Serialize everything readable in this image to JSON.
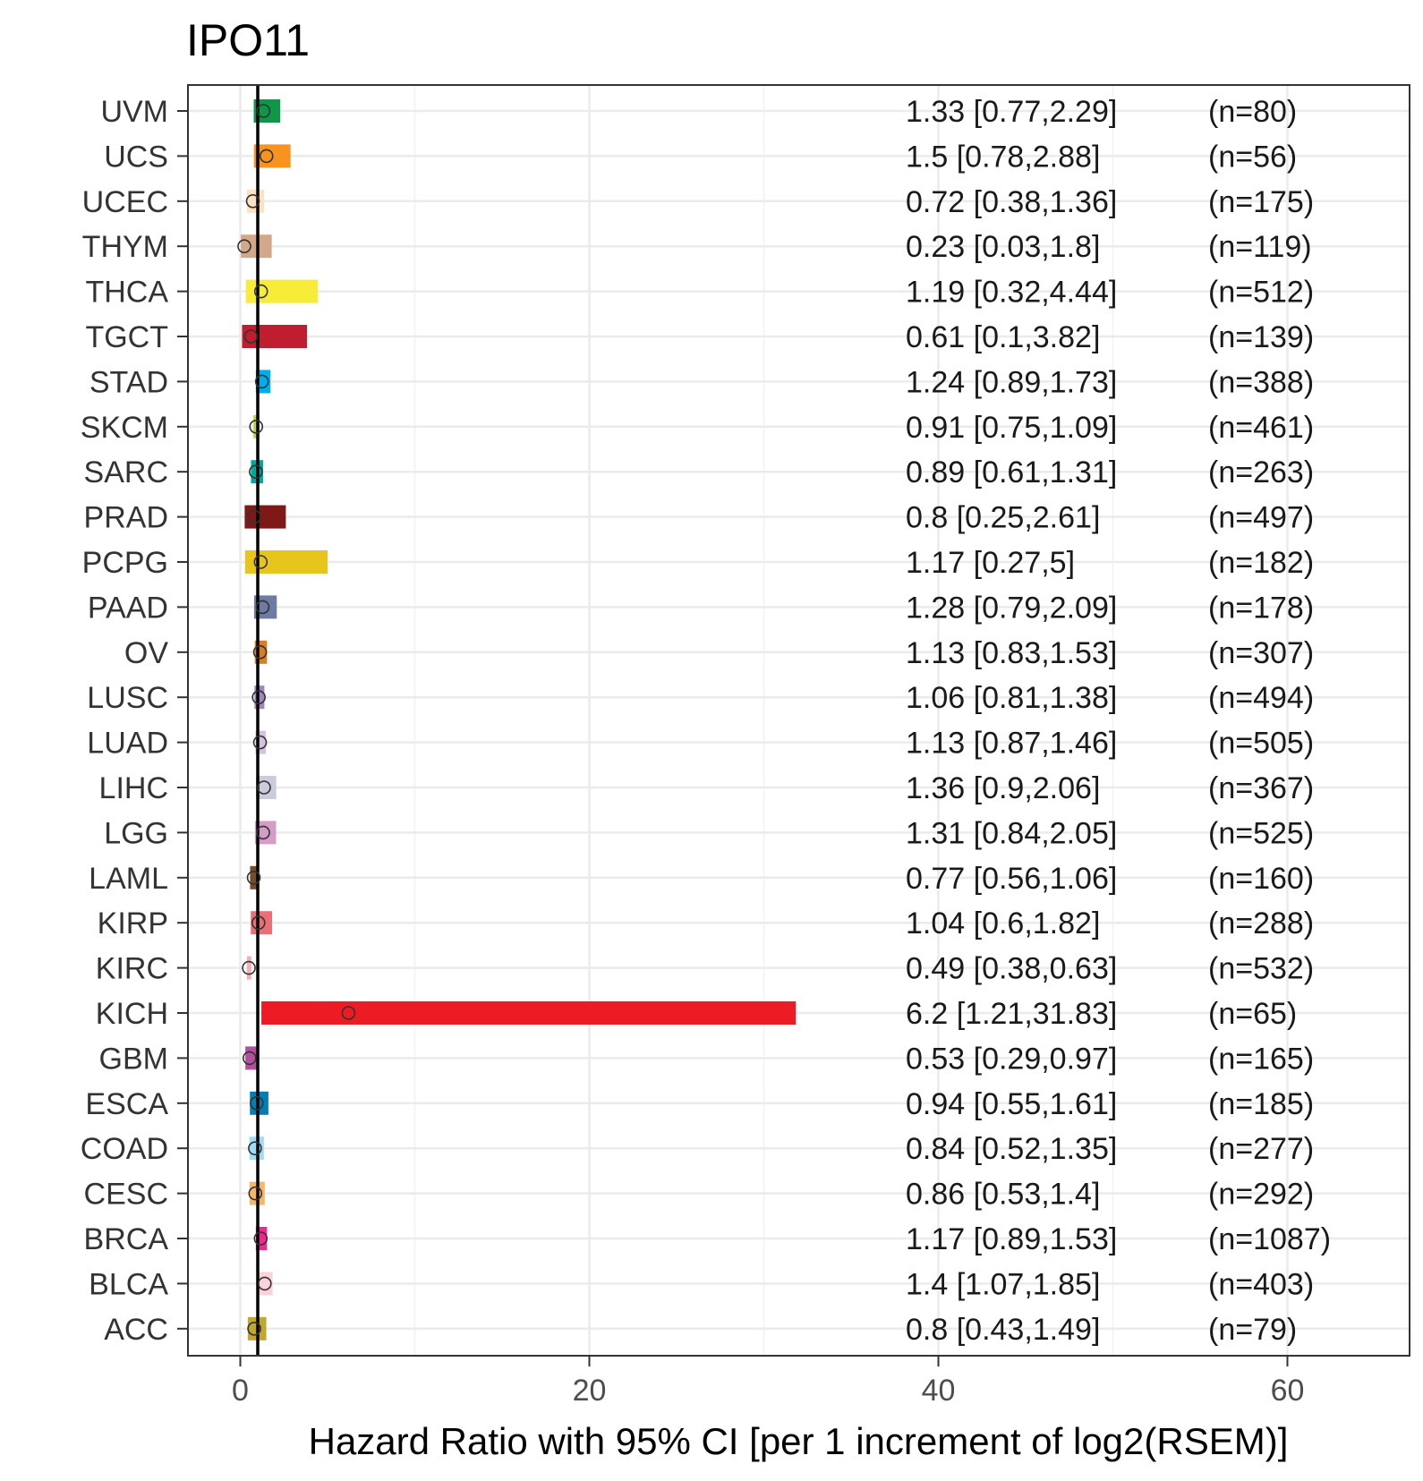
{
  "chart_data": {
    "type": "forest",
    "title": "IPO11",
    "xlabel": "Hazard Ratio with 95% CI [per 1 increment of log2(RSEM)]",
    "ylabel": "",
    "xlim": [
      -3,
      67
    ],
    "xticks": [
      0,
      20,
      40,
      60
    ],
    "xtick_labels": [
      "0",
      "20",
      "40",
      "60"
    ],
    "reference_line": 1,
    "grid": true,
    "theme": "bw",
    "rows": [
      {
        "label": "UVM",
        "hr": 1.33,
        "low": 0.77,
        "high": 2.29,
        "text": "1.33 [0.77,2.29]",
        "n": "(n=80)",
        "color": "#109648"
      },
      {
        "label": "UCS",
        "hr": 1.5,
        "low": 0.78,
        "high": 2.88,
        "text": "1.5 [0.78,2.88]",
        "n": "(n=56)",
        "color": "#F7931E"
      },
      {
        "label": "UCEC",
        "hr": 0.72,
        "low": 0.38,
        "high": 1.36,
        "text": "0.72 [0.38,1.36]",
        "n": "(n=175)",
        "color": "#FDE1C3"
      },
      {
        "label": "THYM",
        "hr": 0.23,
        "low": 0.03,
        "high": 1.8,
        "text": "0.23 [0.03,1.8]",
        "n": "(n=119)",
        "color": "#D2A78A"
      },
      {
        "label": "THCA",
        "hr": 1.19,
        "low": 0.32,
        "high": 4.44,
        "text": "1.19 [0.32,4.44]",
        "n": "(n=512)",
        "color": "#F7EC37"
      },
      {
        "label": "TGCT",
        "hr": 0.61,
        "low": 0.1,
        "high": 3.82,
        "text": "0.61 [0.1,3.82]",
        "n": "(n=139)",
        "color": "#BE1E2D"
      },
      {
        "label": "STAD",
        "hr": 1.24,
        "low": 0.89,
        "high": 1.73,
        "text": "1.24 [0.89,1.73]",
        "n": "(n=388)",
        "color": "#00AEEF"
      },
      {
        "label": "SKCM",
        "hr": 0.91,
        "low": 0.75,
        "high": 1.09,
        "text": "0.91 [0.75,1.09]",
        "n": "(n=461)",
        "color": "#BBD642"
      },
      {
        "label": "SARC",
        "hr": 0.89,
        "low": 0.61,
        "high": 1.31,
        "text": "0.89 [0.61,1.31]",
        "n": "(n=263)",
        "color": "#00A99D"
      },
      {
        "label": "PRAD",
        "hr": 0.8,
        "low": 0.25,
        "high": 2.61,
        "text": "0.8 [0.25,2.61]",
        "n": "(n=497)",
        "color": "#7E1918"
      },
      {
        "label": "PCPG",
        "hr": 1.17,
        "low": 0.27,
        "high": 5,
        "text": "1.17 [0.27,5]",
        "n": "(n=182)",
        "color": "#E8C51D"
      },
      {
        "label": "PAAD",
        "hr": 1.28,
        "low": 0.79,
        "high": 2.09,
        "text": "1.28 [0.79,2.09]",
        "n": "(n=178)",
        "color": "#6E7BA2"
      },
      {
        "label": "OV",
        "hr": 1.13,
        "low": 0.83,
        "high": 1.53,
        "text": "1.13 [0.83,1.53]",
        "n": "(n=307)",
        "color": "#D97D25"
      },
      {
        "label": "LUSC",
        "hr": 1.06,
        "low": 0.81,
        "high": 1.38,
        "text": "1.06 [0.81,1.38]",
        "n": "(n=494)",
        "color": "#A084BD"
      },
      {
        "label": "LUAD",
        "hr": 1.13,
        "low": 0.87,
        "high": 1.46,
        "text": "1.13 [0.87,1.46]",
        "n": "(n=505)",
        "color": "#D3C3E0"
      },
      {
        "label": "LIHC",
        "hr": 1.36,
        "low": 0.9,
        "high": 2.06,
        "text": "1.36 [0.9,2.06]",
        "n": "(n=367)",
        "color": "#CACCDB"
      },
      {
        "label": "LGG",
        "hr": 1.31,
        "low": 0.84,
        "high": 2.05,
        "text": "1.31 [0.84,2.05]",
        "n": "(n=525)",
        "color": "#D49DC7"
      },
      {
        "label": "LAML",
        "hr": 0.77,
        "low": 0.56,
        "high": 1.06,
        "text": "0.77 [0.56,1.06]",
        "n": "(n=160)",
        "color": "#754C29"
      },
      {
        "label": "KIRP",
        "hr": 1.04,
        "low": 0.6,
        "high": 1.82,
        "text": "1.04 [0.6,1.82]",
        "n": "(n=288)",
        "color": "#EA7075"
      },
      {
        "label": "KIRC",
        "hr": 0.49,
        "low": 0.38,
        "high": 0.63,
        "text": "0.49 [0.38,0.63]",
        "n": "(n=532)",
        "color": "#F8AFB3"
      },
      {
        "label": "KICH",
        "hr": 6.2,
        "low": 1.21,
        "high": 31.83,
        "text": "6.2 [1.21,31.83]",
        "n": "(n=65)",
        "color": "#ED1C24"
      },
      {
        "label": "GBM",
        "hr": 0.53,
        "low": 0.29,
        "high": 0.97,
        "text": "0.53 [0.29,0.97]",
        "n": "(n=165)",
        "color": "#B2509E"
      },
      {
        "label": "ESCA",
        "hr": 0.94,
        "low": 0.55,
        "high": 1.61,
        "text": "0.94 [0.55,1.61]",
        "n": "(n=185)",
        "color": "#007EB5"
      },
      {
        "label": "COAD",
        "hr": 0.84,
        "low": 0.52,
        "high": 1.35,
        "text": "0.84 [0.52,1.35]",
        "n": "(n=277)",
        "color": "#9EDDF9"
      },
      {
        "label": "CESC",
        "hr": 0.86,
        "low": 0.53,
        "high": 1.4,
        "text": "0.86 [0.53,1.4]",
        "n": "(n=292)",
        "color": "#F6B667"
      },
      {
        "label": "BRCA",
        "hr": 1.17,
        "low": 0.89,
        "high": 1.53,
        "text": "1.17 [0.89,1.53]",
        "n": "(n=1087)",
        "color": "#ED2891"
      },
      {
        "label": "BLCA",
        "hr": 1.4,
        "low": 1.07,
        "high": 1.85,
        "text": "1.4 [1.07,1.85]",
        "n": "(n=403)",
        "color": "#FAD2D9"
      },
      {
        "label": "ACC",
        "hr": 0.8,
        "low": 0.43,
        "high": 1.49,
        "text": "0.8 [0.43,1.49]",
        "n": "(n=79)",
        "color": "#C1A72F"
      }
    ]
  }
}
